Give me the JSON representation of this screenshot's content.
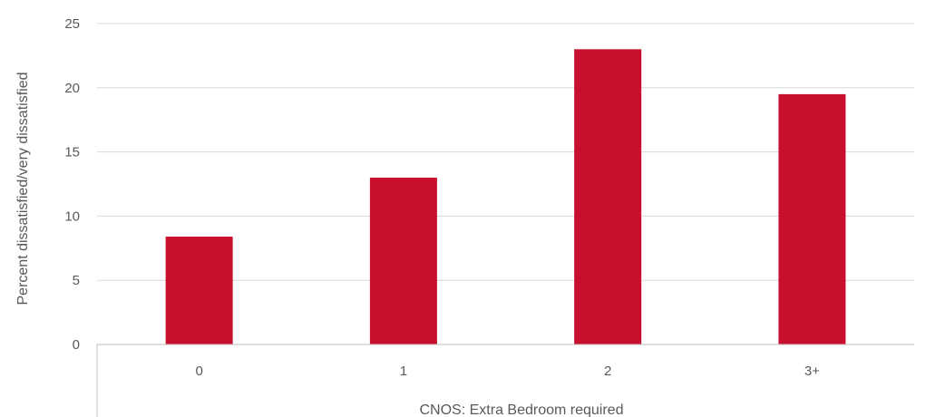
{
  "chart_data": {
    "type": "bar",
    "title": "",
    "xlabel": "CNOS: Extra Bedroom required",
    "ylabel": "Percent dissatisfied/very dissatisfied",
    "categories": [
      "0",
      "1",
      "2",
      "3+"
    ],
    "values": [
      8.4,
      13.0,
      23.0,
      19.5
    ],
    "ylim": [
      0,
      25
    ],
    "yticks": [
      0,
      5,
      10,
      15,
      20,
      25
    ],
    "grid": true,
    "legend": "none",
    "bar_color": "#C8102E"
  }
}
